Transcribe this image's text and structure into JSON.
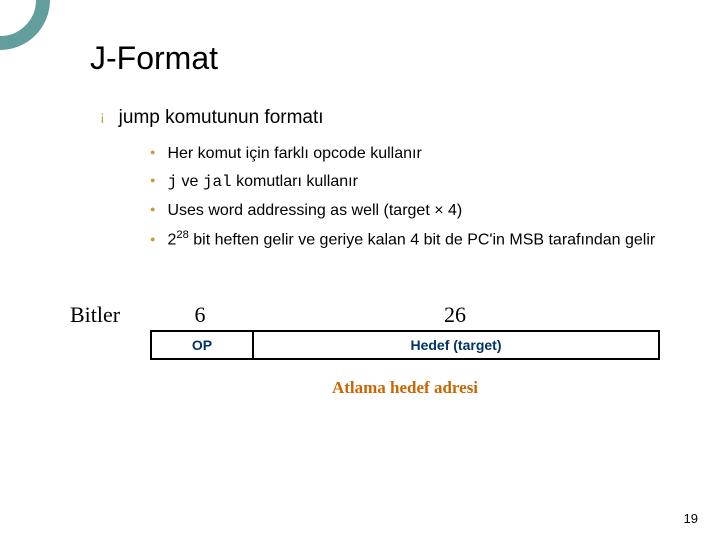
{
  "title": "J-Format",
  "main_bullet": "jump komutunun formatı",
  "sub_bullets": [
    "Her komut için farklı opcode kullanır",
    "__CODE_J_JAL__",
    "Uses word addressing as well (target × 4)",
    "__SUP_228__"
  ],
  "sub2_html_j_jal": {
    "prefix_j": "j",
    "mid": " ve ",
    "prefix_jal": "jal",
    "suffix": " komutları kullanır"
  },
  "sub4_html_228": {
    "pre": "2",
    "sup": "28",
    "post": " bit heften gelir ve geriye kalan 4 bit de PC'in MSB tarafından gelir"
  },
  "bitler_label": "Bitler",
  "field_widths": {
    "op": "6",
    "target": "26"
  },
  "field_labels": {
    "op": "OP",
    "target": "Hedef (target)"
  },
  "caption": "Atlama hedef adresi",
  "page_number": "19",
  "colors": {
    "circle_border": "#3b8686",
    "bullet_color": "#cc9933",
    "field_text": "#003366",
    "caption_color": "#cc6600"
  }
}
